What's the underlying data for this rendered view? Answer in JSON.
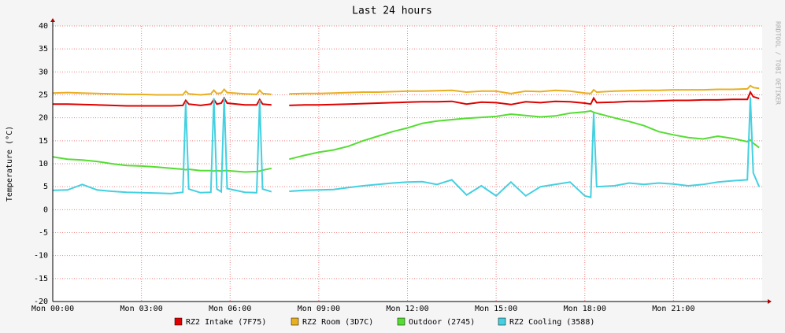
{
  "chart_data": {
    "type": "line",
    "title": "Last 24 hours",
    "y_label": "Temperature (°C)",
    "side_label": "RRDTOOL / TOBI OETIKER",
    "x": [
      0,
      0.5,
      1,
      1.5,
      2,
      2.5,
      3,
      3.5,
      4,
      4.4,
      4.5,
      4.6,
      5,
      5.35,
      5.45,
      5.55,
      5.7,
      5.8,
      5.9,
      6.5,
      6.9,
      7.0,
      7.1,
      7.4,
      7.6,
      8,
      8.5,
      9,
      9.5,
      10,
      10.5,
      11,
      11.5,
      12,
      12.5,
      13,
      13.5,
      14,
      14.5,
      15,
      15.5,
      16,
      16.5,
      17,
      17.5,
      18,
      18.2,
      18.3,
      18.4,
      19,
      19.5,
      20,
      20.5,
      21,
      21.5,
      22,
      22.5,
      23,
      23.5,
      23.6,
      23.7,
      23.9
    ],
    "series": [
      {
        "name": "RZ2 Intake (7F75)",
        "color": "#e00000",
        "values": [
          23,
          23,
          22.9,
          22.8,
          22.7,
          22.6,
          22.6,
          22.6,
          22.6,
          22.7,
          23.8,
          23,
          22.7,
          23,
          24,
          23,
          23.2,
          24.3,
          23.2,
          22.8,
          22.8,
          24,
          23,
          22.8,
          null,
          22.7,
          22.8,
          22.8,
          22.9,
          23,
          23.1,
          23.2,
          23.3,
          23.4,
          23.5,
          23.5,
          23.6,
          23.0,
          23.4,
          23.3,
          22.9,
          23.5,
          23.3,
          23.6,
          23.5,
          23.2,
          23,
          24.3,
          23.3,
          23.4,
          23.6,
          23.6,
          23.7,
          23.8,
          23.8,
          23.9,
          23.9,
          24,
          24,
          25.6,
          24.6,
          24.2
        ]
      },
      {
        "name": "RZ2 Room (3D7C)",
        "color": "#e8b020",
        "values": [
          25.4,
          25.5,
          25.4,
          25.3,
          25.2,
          25.1,
          25.1,
          25,
          25,
          25,
          25.8,
          25.2,
          25,
          25.2,
          26,
          25.3,
          25.4,
          26.2,
          25.5,
          25.2,
          25.1,
          26,
          25.3,
          25.1,
          null,
          25.2,
          25.3,
          25.3,
          25.4,
          25.5,
          25.6,
          25.6,
          25.7,
          25.8,
          25.8,
          25.9,
          26,
          25.6,
          25.8,
          25.8,
          25.3,
          25.8,
          25.7,
          26,
          25.8,
          25.4,
          25.3,
          26.1,
          25.6,
          25.8,
          25.9,
          26,
          26,
          26.1,
          26.1,
          26.1,
          26.2,
          26.2,
          26.3,
          27,
          26.6,
          26.4
        ]
      },
      {
        "name": "Outdoor (2745)",
        "color": "#55dd33",
        "values": [
          11.5,
          11,
          10.8,
          10.5,
          10,
          9.6,
          9.5,
          9.3,
          9,
          8.8,
          8.7,
          8.8,
          8.5,
          8.5,
          8.4,
          8.5,
          8.4,
          8.5,
          8.5,
          8.2,
          8.3,
          8.4,
          8.6,
          9,
          null,
          11,
          11.8,
          12.5,
          13,
          13.8,
          15,
          16,
          17,
          17.8,
          18.8,
          19.3,
          19.6,
          19.9,
          20.1,
          20.3,
          20.8,
          20.5,
          20.2,
          20.4,
          21,
          21.3,
          21.5,
          21.2,
          21,
          20,
          19.2,
          18.3,
          17,
          16.3,
          15.7,
          15.4,
          16,
          15.5,
          14.8,
          15.2,
          14.5,
          13.5
        ]
      },
      {
        "name": "RZ2 Cooling (3588)",
        "color": "#44d0e0",
        "values": [
          4.2,
          4.3,
          5.5,
          4.3,
          4,
          3.8,
          3.7,
          3.6,
          3.5,
          3.8,
          23.5,
          4.5,
          3.7,
          3.8,
          24.3,
          4.5,
          3.9,
          24.3,
          4.6,
          3.8,
          3.7,
          23.8,
          4.5,
          3.9,
          null,
          4,
          4.2,
          4.3,
          4.4,
          4.8,
          5.2,
          5.5,
          5.8,
          6,
          6.1,
          5.5,
          6.5,
          3.2,
          5.2,
          3,
          6,
          3,
          5,
          5.5,
          6,
          3,
          2.7,
          21,
          5,
          5.2,
          5.8,
          5.5,
          5.8,
          5.6,
          5.2,
          5.5,
          6,
          6.3,
          6.5,
          24.5,
          8,
          5
        ]
      }
    ],
    "xlim": [
      0,
      24
    ],
    "xticks": [
      {
        "value": 0,
        "label": "Mon 00:00"
      },
      {
        "value": 3,
        "label": "Mon 03:00"
      },
      {
        "value": 6,
        "label": "Mon 06:00"
      },
      {
        "value": 9,
        "label": "Mon 09:00"
      },
      {
        "value": 12,
        "label": "Mon 12:00"
      },
      {
        "value": 15,
        "label": "Mon 15:00"
      },
      {
        "value": 18,
        "label": "Mon 18:00"
      },
      {
        "value": 21,
        "label": "Mon 21:00"
      }
    ],
    "ylim": [
      -20,
      40
    ],
    "yticks": [
      -20,
      -15,
      -10,
      -5,
      0,
      5,
      10,
      15,
      20,
      25,
      30,
      35,
      40
    ],
    "grid": true
  }
}
